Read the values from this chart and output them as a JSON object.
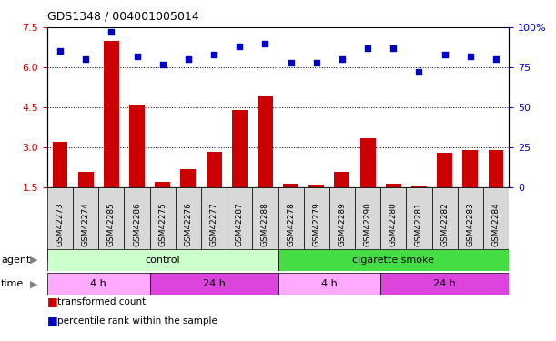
{
  "title": "GDS1348 / 004001005014",
  "samples": [
    "GSM42273",
    "GSM42274",
    "GSM42285",
    "GSM42286",
    "GSM42275",
    "GSM42276",
    "GSM42277",
    "GSM42287",
    "GSM42288",
    "GSM42278",
    "GSM42279",
    "GSM42289",
    "GSM42290",
    "GSM42280",
    "GSM42281",
    "GSM42282",
    "GSM42283",
    "GSM42284"
  ],
  "transformed_count": [
    3.2,
    2.1,
    7.0,
    4.6,
    1.7,
    2.2,
    2.85,
    4.4,
    4.9,
    1.65,
    1.6,
    2.1,
    3.35,
    1.65,
    1.55,
    2.8,
    2.9,
    2.9
  ],
  "percentile_rank": [
    85,
    80,
    97,
    82,
    77,
    80,
    83,
    88,
    90,
    78,
    78,
    80,
    87,
    87,
    72,
    83,
    82,
    80
  ],
  "ylim_left": [
    1.5,
    7.5
  ],
  "ylim_right": [
    0,
    100
  ],
  "yticks_left": [
    1.5,
    3.0,
    4.5,
    6.0,
    7.5
  ],
  "yticks_right": [
    0,
    25,
    50,
    75,
    100
  ],
  "bar_color": "#cc0000",
  "dot_color": "#0000cc",
  "agent_groups": [
    {
      "label": "control",
      "start": 0,
      "end": 9,
      "color": "#ccffcc"
    },
    {
      "label": "cigarette smoke",
      "start": 9,
      "end": 18,
      "color": "#44dd44"
    }
  ],
  "time_groups": [
    {
      "label": "4 h",
      "start": 0,
      "end": 4,
      "color": "#ffaaff"
    },
    {
      "label": "24 h",
      "start": 4,
      "end": 9,
      "color": "#dd44dd"
    },
    {
      "label": "4 h",
      "start": 9,
      "end": 13,
      "color": "#ffaaff"
    },
    {
      "label": "24 h",
      "start": 13,
      "end": 18,
      "color": "#dd44dd"
    }
  ],
  "legend_bar_label": "transformed count",
  "legend_dot_label": "percentile rank within the sample",
  "bar_bottom": 1.5,
  "sample_box_color": "#d8d8d8",
  "tick_color_left": "#cc0000",
  "tick_color_right": "#0000cc"
}
